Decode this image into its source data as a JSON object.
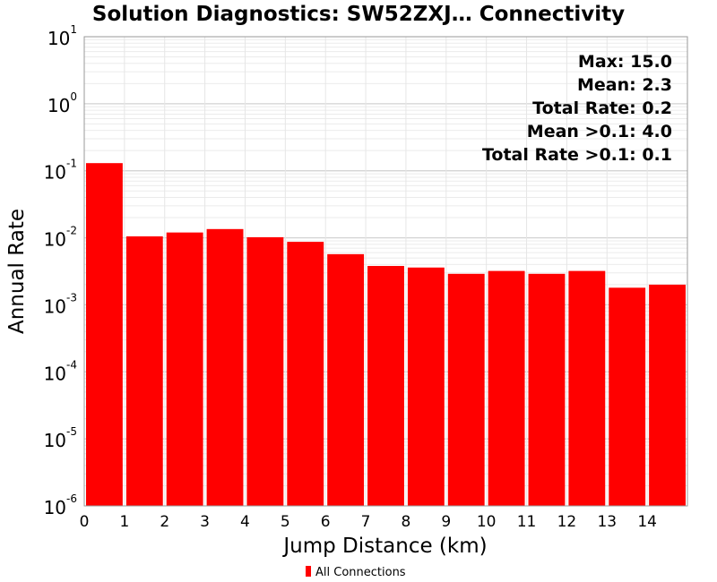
{
  "chart_data": {
    "type": "bar",
    "title": "Solution Diagnostics: SW52ZXJ… Connectivity",
    "xlabel": "Jump Distance (km)",
    "ylabel": "Annual Rate",
    "yscale": "log",
    "ylim": [
      1e-06,
      10
    ],
    "xlim": [
      0,
      15
    ],
    "x_ticks": [
      "0",
      "1",
      "2",
      "3",
      "4",
      "5",
      "6",
      "7",
      "8",
      "9",
      "10",
      "11",
      "12",
      "13",
      "14"
    ],
    "y_ticks": [
      {
        "base": "10",
        "exp": "-6"
      },
      {
        "base": "10",
        "exp": "-5"
      },
      {
        "base": "10",
        "exp": "-4"
      },
      {
        "base": "10",
        "exp": "-3"
      },
      {
        "base": "10",
        "exp": "-2"
      },
      {
        "base": "10",
        "exp": "-1"
      },
      {
        "base": "10",
        "exp": "0"
      },
      {
        "base": "10",
        "exp": "1"
      }
    ],
    "grid": true,
    "legend_position": "bottom",
    "series": [
      {
        "name": "All Connections",
        "color": "#ff0000",
        "bins": [
          {
            "x0": 0,
            "x1": 1,
            "value": 0.13
          },
          {
            "x0": 1,
            "x1": 2,
            "value": 0.0105
          },
          {
            "x0": 2,
            "x1": 3,
            "value": 0.012
          },
          {
            "x0": 3,
            "x1": 4,
            "value": 0.0135
          },
          {
            "x0": 4,
            "x1": 5,
            "value": 0.0102
          },
          {
            "x0": 5,
            "x1": 6,
            "value": 0.0087
          },
          {
            "x0": 6,
            "x1": 7,
            "value": 0.0057
          },
          {
            "x0": 7,
            "x1": 8,
            "value": 0.0038
          },
          {
            "x0": 8,
            "x1": 9,
            "value": 0.0036
          },
          {
            "x0": 9,
            "x1": 10,
            "value": 0.0029
          },
          {
            "x0": 10,
            "x1": 11,
            "value": 0.0032
          },
          {
            "x0": 11,
            "x1": 12,
            "value": 0.0029
          },
          {
            "x0": 12,
            "x1": 13,
            "value": 0.0032
          },
          {
            "x0": 13,
            "x1": 14,
            "value": 0.0018
          },
          {
            "x0": 14,
            "x1": 15,
            "value": 0.002
          }
        ]
      }
    ],
    "annotations": [
      "Max: 15.0",
      "Mean: 2.3",
      "Total Rate: 0.2",
      "Mean >0.1: 4.0",
      "Total Rate >0.1: 0.1"
    ]
  }
}
